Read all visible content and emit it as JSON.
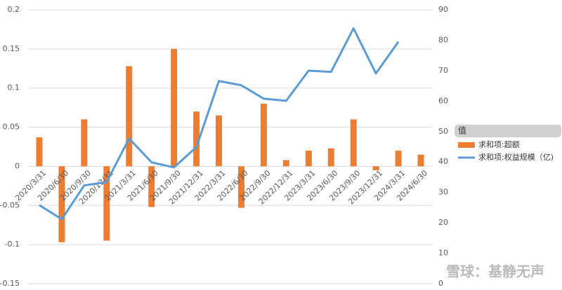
{
  "chart_data": {
    "type": "bar-line",
    "categories": [
      "2020/3/31",
      "2020/6/30",
      "2020/9/30",
      "2020/12/31",
      "2021/3/31",
      "2021/6/30",
      "2021/9/30",
      "2021/12/31",
      "2022/3/31",
      "2022/6/30",
      "2022/9/30",
      "2022/12/31",
      "2023/3/31",
      "2023/6/30",
      "2023/9/30",
      "2023/12/31",
      "2024/3/31",
      "2024/6/30"
    ],
    "series": [
      {
        "name": "求和项:超额",
        "type": "bar",
        "color": "#ed7d31",
        "values": [
          0.037,
          -0.097,
          0.06,
          -0.095,
          0.128,
          -0.052,
          0.15,
          0.07,
          0.065,
          -0.053,
          0.08,
          0.008,
          0.02,
          0.023,
          0.06,
          -0.005,
          0.02,
          0.015
        ]
      },
      {
        "name": "求和项:权益规模（亿)",
        "type": "line",
        "axis": "y2",
        "color": "#5b9bd5",
        "values": [
          25.8,
          21.2,
          32.3,
          33.4,
          47.7,
          39.9,
          38.2,
          44.9,
          66.6,
          65.2,
          60.8,
          60.1,
          70.0,
          69.6,
          83.9,
          69.1,
          79.5,
          null
        ]
      }
    ],
    "ylim": [
      -0.15,
      0.2
    ],
    "yticks": [
      0.2,
      0.15,
      0.1,
      0.05,
      0,
      -0.05,
      -0.1,
      -0.15
    ],
    "y2lim": [
      0,
      90
    ],
    "y2ticks": [
      90,
      80,
      70,
      60,
      50,
      40,
      30,
      20,
      10,
      0
    ],
    "grid": true,
    "legend_title": "值",
    "legend": "right",
    "watermark": "雪球：基静无声"
  }
}
